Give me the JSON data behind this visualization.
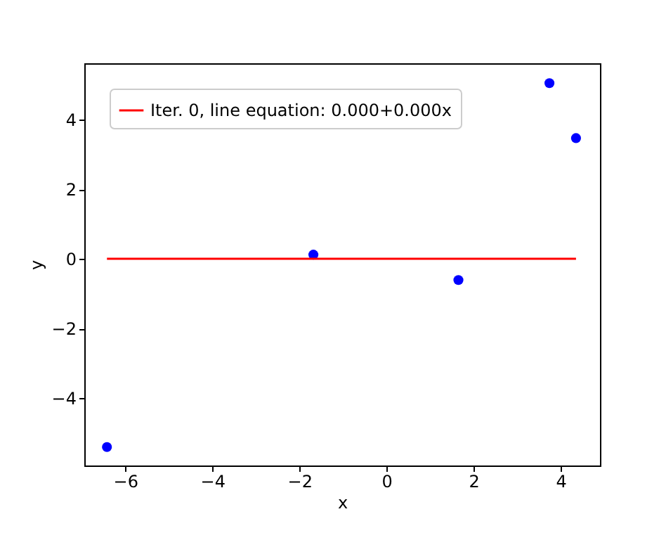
{
  "chart_data": {
    "type": "scatter",
    "xlabel": "x",
    "ylabel": "y",
    "xlim": [
      -6.94,
      4.9
    ],
    "ylim": [
      -5.94,
      5.62
    ],
    "xticks": [
      -6,
      -4,
      -2,
      0,
      2,
      4
    ],
    "yticks": [
      -4,
      -2,
      0,
      2,
      4
    ],
    "legend": "top left",
    "grid": false,
    "series": [
      {
        "color": "#0000ff",
        "marker": "circle",
        "x": [
          -6.42,
          -1.68,
          1.65,
          3.74,
          4.35
        ],
        "values": [
          -5.41,
          0.12,
          -0.61,
          5.05,
          3.47
        ]
      },
      {
        "type": "line",
        "name": "Iter. 0, line equation: 0.000+0.000x",
        "color": "#ff0000",
        "line_style": "solid",
        "x": [
          -6.42,
          4.35
        ],
        "values": [
          0,
          0
        ]
      }
    ]
  }
}
